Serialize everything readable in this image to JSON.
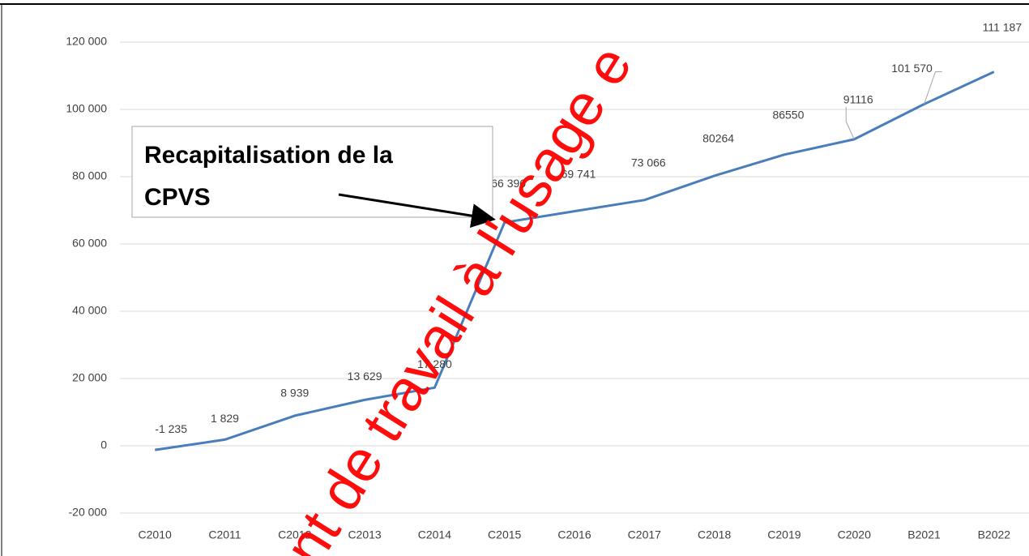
{
  "chart_data": {
    "type": "line",
    "categories": [
      "C2010",
      "C2011",
      "C2012",
      "C2013",
      "C2014",
      "C2015",
      "C2016",
      "C2017",
      "C2018",
      "C2019",
      "C2020",
      "B2021",
      "B2022"
    ],
    "series": [
      {
        "color": "#4a7ebb",
        "values": [
          -1235,
          1829,
          8939,
          13629,
          17280,
          66396,
          69741,
          73066,
          80264,
          86550,
          91116,
          101570,
          111187
        ],
        "value_labels": [
          "-1 235",
          "1 829",
          "8 939",
          "13 629",
          "17 280",
          "66 396",
          "69 741",
          "73 066",
          "80264",
          "86550",
          "91116",
          "101 570",
          "111 187"
        ]
      }
    ],
    "ylim": [
      -20000,
      120000
    ],
    "yticks": [
      {
        "value": -20000,
        "label": "-20 000"
      },
      0,
      {
        "value": 20000,
        "label": "20 000"
      },
      {
        "value": 40000,
        "label": "40 000"
      },
      {
        "value": 60000,
        "label": "60 000"
      },
      {
        "value": 80000,
        "label": "80 000"
      },
      {
        "value": 100000,
        "label": "100 000"
      },
      {
        "value": 120000,
        "label": "120 000"
      }
    ],
    "grid": true,
    "annotation": [
      "Recapitalisation de la",
      "CPVS"
    ],
    "watermark": "nt de travail à l'usage e"
  }
}
